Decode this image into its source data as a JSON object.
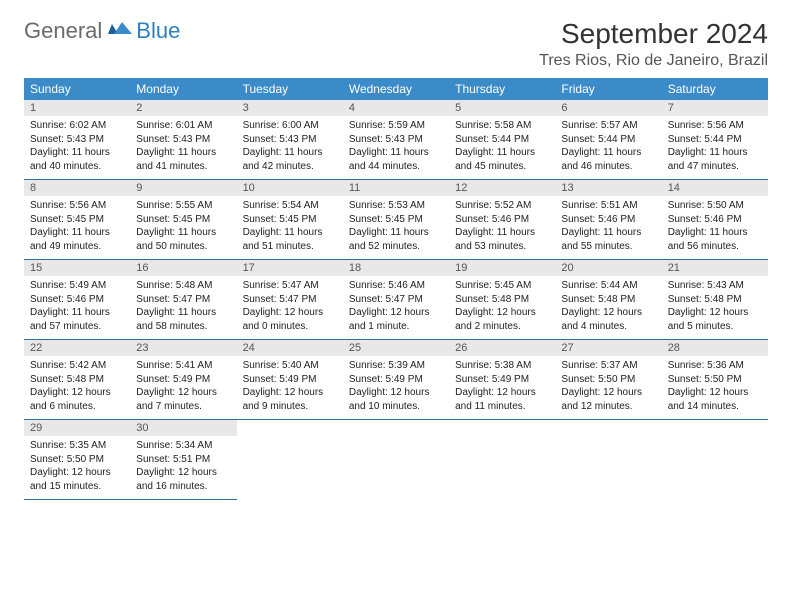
{
  "logo": {
    "text1": "General",
    "text2": "Blue"
  },
  "title": "September 2024",
  "location": "Tres Rios, Rio de Janeiro, Brazil",
  "colors": {
    "header_bg": "#3b8bc8",
    "header_fg": "#ffffff",
    "daynum_bg": "#e8e8e8",
    "row_border": "#2e6da4",
    "logo_gray": "#6b6b6b",
    "logo_blue": "#2f7fbf"
  },
  "weekdays": [
    "Sunday",
    "Monday",
    "Tuesday",
    "Wednesday",
    "Thursday",
    "Friday",
    "Saturday"
  ],
  "labels": {
    "sunrise": "Sunrise:",
    "sunset": "Sunset:",
    "daylight": "Daylight:"
  },
  "days": [
    {
      "n": 1,
      "sunrise": "6:02 AM",
      "sunset": "5:43 PM",
      "dh": 11,
      "dm": 40
    },
    {
      "n": 2,
      "sunrise": "6:01 AM",
      "sunset": "5:43 PM",
      "dh": 11,
      "dm": 41
    },
    {
      "n": 3,
      "sunrise": "6:00 AM",
      "sunset": "5:43 PM",
      "dh": 11,
      "dm": 42
    },
    {
      "n": 4,
      "sunrise": "5:59 AM",
      "sunset": "5:43 PM",
      "dh": 11,
      "dm": 44
    },
    {
      "n": 5,
      "sunrise": "5:58 AM",
      "sunset": "5:44 PM",
      "dh": 11,
      "dm": 45
    },
    {
      "n": 6,
      "sunrise": "5:57 AM",
      "sunset": "5:44 PM",
      "dh": 11,
      "dm": 46
    },
    {
      "n": 7,
      "sunrise": "5:56 AM",
      "sunset": "5:44 PM",
      "dh": 11,
      "dm": 47
    },
    {
      "n": 8,
      "sunrise": "5:56 AM",
      "sunset": "5:45 PM",
      "dh": 11,
      "dm": 49
    },
    {
      "n": 9,
      "sunrise": "5:55 AM",
      "sunset": "5:45 PM",
      "dh": 11,
      "dm": 50
    },
    {
      "n": 10,
      "sunrise": "5:54 AM",
      "sunset": "5:45 PM",
      "dh": 11,
      "dm": 51
    },
    {
      "n": 11,
      "sunrise": "5:53 AM",
      "sunset": "5:45 PM",
      "dh": 11,
      "dm": 52
    },
    {
      "n": 12,
      "sunrise": "5:52 AM",
      "sunset": "5:46 PM",
      "dh": 11,
      "dm": 53
    },
    {
      "n": 13,
      "sunrise": "5:51 AM",
      "sunset": "5:46 PM",
      "dh": 11,
      "dm": 55
    },
    {
      "n": 14,
      "sunrise": "5:50 AM",
      "sunset": "5:46 PM",
      "dh": 11,
      "dm": 56
    },
    {
      "n": 15,
      "sunrise": "5:49 AM",
      "sunset": "5:46 PM",
      "dh": 11,
      "dm": 57
    },
    {
      "n": 16,
      "sunrise": "5:48 AM",
      "sunset": "5:47 PM",
      "dh": 11,
      "dm": 58
    },
    {
      "n": 17,
      "sunrise": "5:47 AM",
      "sunset": "5:47 PM",
      "dh": 12,
      "dm": 0
    },
    {
      "n": 18,
      "sunrise": "5:46 AM",
      "sunset": "5:47 PM",
      "dh": 12,
      "dm": 1
    },
    {
      "n": 19,
      "sunrise": "5:45 AM",
      "sunset": "5:48 PM",
      "dh": 12,
      "dm": 2
    },
    {
      "n": 20,
      "sunrise": "5:44 AM",
      "sunset": "5:48 PM",
      "dh": 12,
      "dm": 4
    },
    {
      "n": 21,
      "sunrise": "5:43 AM",
      "sunset": "5:48 PM",
      "dh": 12,
      "dm": 5
    },
    {
      "n": 22,
      "sunrise": "5:42 AM",
      "sunset": "5:48 PM",
      "dh": 12,
      "dm": 6
    },
    {
      "n": 23,
      "sunrise": "5:41 AM",
      "sunset": "5:49 PM",
      "dh": 12,
      "dm": 7
    },
    {
      "n": 24,
      "sunrise": "5:40 AM",
      "sunset": "5:49 PM",
      "dh": 12,
      "dm": 9
    },
    {
      "n": 25,
      "sunrise": "5:39 AM",
      "sunset": "5:49 PM",
      "dh": 12,
      "dm": 10
    },
    {
      "n": 26,
      "sunrise": "5:38 AM",
      "sunset": "5:49 PM",
      "dh": 12,
      "dm": 11
    },
    {
      "n": 27,
      "sunrise": "5:37 AM",
      "sunset": "5:50 PM",
      "dh": 12,
      "dm": 12
    },
    {
      "n": 28,
      "sunrise": "5:36 AM",
      "sunset": "5:50 PM",
      "dh": 12,
      "dm": 14
    },
    {
      "n": 29,
      "sunrise": "5:35 AM",
      "sunset": "5:50 PM",
      "dh": 12,
      "dm": 15
    },
    {
      "n": 30,
      "sunrise": "5:34 AM",
      "sunset": "5:51 PM",
      "dh": 12,
      "dm": 16
    }
  ],
  "start_weekday": 0,
  "total_cells": 35
}
